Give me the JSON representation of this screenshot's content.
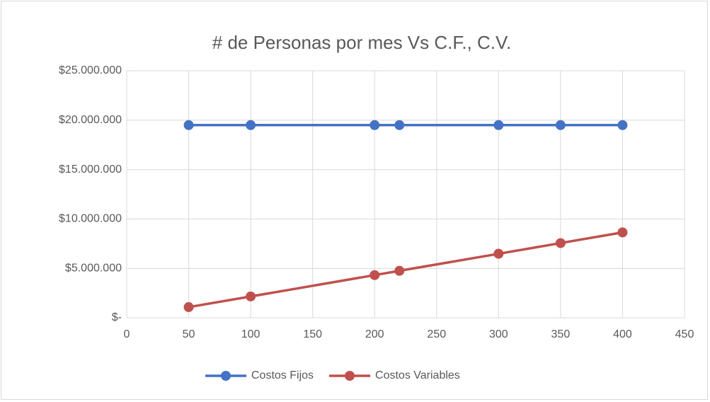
{
  "chart_data": {
    "type": "line",
    "title": "# de Personas por mes Vs C.F., C.V.",
    "x": [
      50,
      100,
      200,
      220,
      300,
      350,
      400
    ],
    "series": [
      {
        "name": "Costos Fijos",
        "color": "#4472c4",
        "values": [
          19500000,
          19500000,
          19500000,
          19500000,
          19500000,
          19500000,
          19500000
        ]
      },
      {
        "name": "Costos Variables",
        "color": "#c0504d",
        "values": [
          1080000,
          2160000,
          4320000,
          4752000,
          6480000,
          7560000,
          8640000
        ]
      }
    ],
    "xlim": [
      0,
      450
    ],
    "xticks": [
      0,
      50,
      100,
      150,
      200,
      250,
      300,
      350,
      400,
      450
    ],
    "ylim": [
      0,
      25000000
    ],
    "yticks": [
      {
        "value": 0,
        "label": "$-"
      },
      {
        "value": 5000000,
        "label": "$5.000.000"
      },
      {
        "value": 10000000,
        "label": "$10.000.000"
      },
      {
        "value": 15000000,
        "label": "$15.000.000"
      },
      {
        "value": 20000000,
        "label": "$20.000.000"
      },
      {
        "value": 25000000,
        "label": "$25.000.000"
      }
    ],
    "grid": true,
    "legend": "bottom"
  }
}
